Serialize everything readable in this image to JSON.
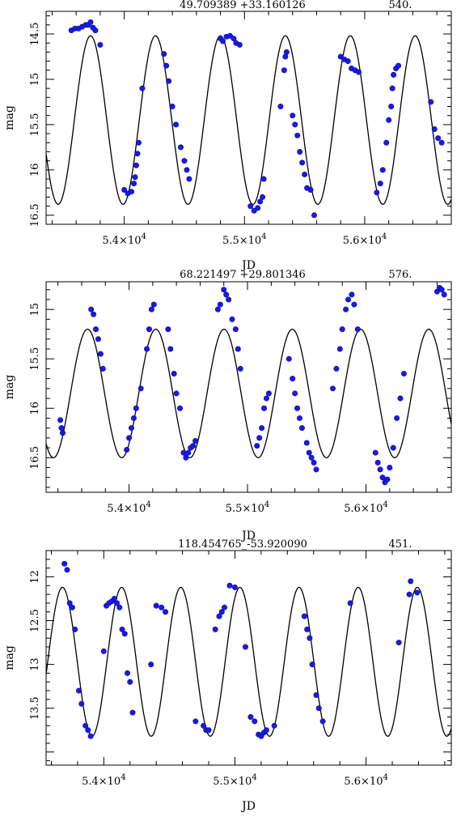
{
  "chart_data": [
    {
      "type": "scatter",
      "title": "49.709389 +33.160126",
      "period_label": "540.",
      "xlabel": "JD",
      "ylabel": "mag",
      "xlim": [
        53350,
        56720
      ],
      "ylim": [
        16.6,
        14.25
      ],
      "y_inverted": true,
      "grid": false,
      "x_ticks": [
        {
          "value": 54000,
          "mant": "5.4",
          "exp": "4"
        },
        {
          "value": 55000,
          "mant": "5.5",
          "exp": "4"
        },
        {
          "value": 56000,
          "mant": "5.6",
          "exp": "4"
        }
      ],
      "y_ticks": [
        {
          "value": 14.5,
          "label": "14.5"
        },
        {
          "value": 15,
          "label": "15"
        },
        {
          "value": 15.5,
          "label": "15.5"
        },
        {
          "value": 16,
          "label": "16"
        },
        {
          "value": 16.5,
          "label": "16.5"
        }
      ],
      "model": {
        "mean": 15.45,
        "amplitude": 0.93,
        "period": 540,
        "peak_jd": 53720
      },
      "points": [
        [
          53560,
          14.46
        ],
        [
          53590,
          14.44
        ],
        [
          53620,
          14.44
        ],
        [
          53650,
          14.42
        ],
        [
          53680,
          14.4
        ],
        [
          53700,
          14.4
        ],
        [
          53720,
          14.37
        ],
        [
          53740,
          14.43
        ],
        [
          53760,
          14.46
        ],
        [
          53800,
          14.62
        ],
        [
          54000,
          16.22
        ],
        [
          54030,
          16.26
        ],
        [
          54060,
          16.24
        ],
        [
          54080,
          16.15
        ],
        [
          54090,
          16.08
        ],
        [
          54100,
          15.95
        ],
        [
          54110,
          15.82
        ],
        [
          54120,
          15.7
        ],
        [
          54150,
          15.1
        ],
        [
          54330,
          14.72
        ],
        [
          54350,
          14.85
        ],
        [
          54370,
          15.02
        ],
        [
          54400,
          15.3
        ],
        [
          54430,
          15.5
        ],
        [
          54470,
          15.75
        ],
        [
          54500,
          15.9
        ],
        [
          54520,
          16.0
        ],
        [
          54540,
          16.1
        ],
        [
          54800,
          14.55
        ],
        [
          54820,
          14.58
        ],
        [
          54850,
          14.53
        ],
        [
          54880,
          14.52
        ],
        [
          54910,
          14.55
        ],
        [
          54930,
          14.6
        ],
        [
          54960,
          14.62
        ],
        [
          55050,
          16.4
        ],
        [
          55080,
          16.45
        ],
        [
          55110,
          16.42
        ],
        [
          55130,
          16.35
        ],
        [
          55150,
          16.3
        ],
        [
          55160,
          16.1
        ],
        [
          55300,
          15.3
        ],
        [
          55330,
          14.9
        ],
        [
          55340,
          14.75
        ],
        [
          55350,
          14.7
        ],
        [
          55400,
          15.4
        ],
        [
          55420,
          15.5
        ],
        [
          55440,
          15.62
        ],
        [
          55460,
          15.8
        ],
        [
          55480,
          15.92
        ],
        [
          55500,
          16.05
        ],
        [
          55520,
          16.2
        ],
        [
          55550,
          16.22
        ],
        [
          55580,
          16.5
        ],
        [
          55800,
          14.75
        ],
        [
          55830,
          14.78
        ],
        [
          55860,
          14.8
        ],
        [
          55890,
          14.88
        ],
        [
          55920,
          14.9
        ],
        [
          55950,
          14.92
        ],
        [
          56100,
          16.25
        ],
        [
          56130,
          16.15
        ],
        [
          56150,
          16.0
        ],
        [
          56180,
          15.7
        ],
        [
          56200,
          15.45
        ],
        [
          56220,
          15.3
        ],
        [
          56230,
          15.1
        ],
        [
          56240,
          14.95
        ],
        [
          56260,
          14.88
        ],
        [
          56280,
          14.85
        ],
        [
          56550,
          15.25
        ],
        [
          56580,
          15.55
        ],
        [
          56610,
          15.65
        ],
        [
          56640,
          15.7
        ]
      ]
    },
    {
      "type": "scatter",
      "title": "68.221497 +29.801346",
      "period_label": "576.",
      "xlabel": "JD",
      "ylabel": "mag",
      "xlim": [
        53300,
        56720
      ],
      "ylim": [
        16.85,
        14.72
      ],
      "y_inverted": true,
      "grid": false,
      "x_ticks": [
        {
          "value": 54000,
          "mant": "5.4",
          "exp": "4"
        },
        {
          "value": 55000,
          "mant": "5.5",
          "exp": "4"
        },
        {
          "value": 56000,
          "mant": "5.6",
          "exp": "4"
        }
      ],
      "y_ticks": [
        {
          "value": 15,
          "label": "15"
        },
        {
          "value": 15.5,
          "label": "15.5"
        },
        {
          "value": 16,
          "label": "16"
        },
        {
          "value": 16.5,
          "label": "16.5"
        }
      ],
      "model": {
        "mean": 15.85,
        "amplitude": 0.65,
        "period": 576,
        "peak_jd": 53650
      },
      "points": [
        [
          53420,
          16.12
        ],
        [
          53430,
          16.2
        ],
        [
          53440,
          16.25
        ],
        [
          53680,
          15.0
        ],
        [
          53700,
          15.05
        ],
        [
          53720,
          15.2
        ],
        [
          53740,
          15.3
        ],
        [
          53760,
          15.45
        ],
        [
          53780,
          15.6
        ],
        [
          53980,
          16.42
        ],
        [
          54000,
          16.3
        ],
        [
          54020,
          16.2
        ],
        [
          54040,
          16.1
        ],
        [
          54060,
          16.0
        ],
        [
          54100,
          15.8
        ],
        [
          54150,
          15.4
        ],
        [
          54170,
          15.2
        ],
        [
          54190,
          15.0
        ],
        [
          54210,
          14.95
        ],
        [
          54330,
          15.2
        ],
        [
          54350,
          15.4
        ],
        [
          54380,
          15.65
        ],
        [
          54400,
          15.85
        ],
        [
          54430,
          16.0
        ],
        [
          54460,
          16.45
        ],
        [
          54480,
          16.5
        ],
        [
          54500,
          16.45
        ],
        [
          54520,
          16.4
        ],
        [
          54540,
          16.38
        ],
        [
          54560,
          16.33
        ],
        [
          54750,
          15.0
        ],
        [
          54770,
          14.95
        ],
        [
          54800,
          14.8
        ],
        [
          54820,
          14.85
        ],
        [
          54840,
          14.9
        ],
        [
          54870,
          15.1
        ],
        [
          54900,
          15.2
        ],
        [
          54920,
          15.4
        ],
        [
          54940,
          15.6
        ],
        [
          55080,
          16.38
        ],
        [
          55100,
          16.3
        ],
        [
          55120,
          16.2
        ],
        [
          55140,
          16.0
        ],
        [
          55160,
          15.9
        ],
        [
          55180,
          15.85
        ],
        [
          55350,
          15.5
        ],
        [
          55380,
          15.7
        ],
        [
          55400,
          15.85
        ],
        [
          55420,
          16.0
        ],
        [
          55440,
          16.1
        ],
        [
          55460,
          16.2
        ],
        [
          55500,
          16.35
        ],
        [
          55520,
          16.45
        ],
        [
          55540,
          16.5
        ],
        [
          55560,
          16.55
        ],
        [
          55580,
          16.62
        ],
        [
          55720,
          15.8
        ],
        [
          55750,
          15.6
        ],
        [
          55780,
          15.4
        ],
        [
          55800,
          15.2
        ],
        [
          55830,
          15.0
        ],
        [
          55850,
          14.9
        ],
        [
          55880,
          14.85
        ],
        [
          55900,
          14.95
        ],
        [
          55930,
          15.2
        ],
        [
          56080,
          16.45
        ],
        [
          56100,
          16.55
        ],
        [
          56120,
          16.62
        ],
        [
          56140,
          16.7
        ],
        [
          56160,
          16.75
        ],
        [
          56180,
          16.72
        ],
        [
          56200,
          16.6
        ],
        [
          56230,
          16.4
        ],
        [
          56260,
          16.1
        ],
        [
          56290,
          15.9
        ],
        [
          56320,
          15.65
        ],
        [
          56600,
          14.82
        ],
        [
          56620,
          14.78
        ],
        [
          56640,
          14.8
        ],
        [
          56660,
          14.85
        ]
      ]
    },
    {
      "type": "scatter",
      "title": "118.454765_-53.920090",
      "period_label": "451.",
      "xlabel": "JD",
      "ylabel": "mag",
      "xlim": [
        53560,
        56650
      ],
      "ylim": [
        14.15,
        11.7
      ],
      "y_inverted": true,
      "grid": false,
      "x_ticks": [
        {
          "value": 54000,
          "mant": "5.4",
          "exp": "4"
        },
        {
          "value": 55000,
          "mant": "5.5",
          "exp": "4"
        },
        {
          "value": 56000,
          "mant": "5.6",
          "exp": "4"
        }
      ],
      "y_ticks": [
        {
          "value": 12,
          "label": "12"
        },
        {
          "value": 12.5,
          "label": "12.5"
        },
        {
          "value": 13,
          "label": "13"
        },
        {
          "value": 13.5,
          "label": "13.5"
        }
      ],
      "model": {
        "mean": 12.97,
        "amplitude": 0.85,
        "period": 451,
        "peak_jd": 53685
      },
      "points": [
        [
          53700,
          11.85
        ],
        [
          53720,
          11.92
        ],
        [
          53740,
          12.3
        ],
        [
          53760,
          12.35
        ],
        [
          53780,
          12.6
        ],
        [
          53810,
          13.3
        ],
        [
          53830,
          13.45
        ],
        [
          53860,
          13.7
        ],
        [
          53880,
          13.75
        ],
        [
          53900,
          13.82
        ],
        [
          54000,
          12.85
        ],
        [
          54020,
          12.33
        ],
        [
          54040,
          12.3
        ],
        [
          54060,
          12.28
        ],
        [
          54080,
          12.25
        ],
        [
          54100,
          12.3
        ],
        [
          54120,
          12.35
        ],
        [
          54140,
          12.6
        ],
        [
          54160,
          12.65
        ],
        [
          54180,
          13.1
        ],
        [
          54200,
          13.2
        ],
        [
          54220,
          13.55
        ],
        [
          54360,
          13.0
        ],
        [
          54400,
          12.33
        ],
        [
          54440,
          12.35
        ],
        [
          54470,
          12.4
        ],
        [
          54700,
          13.65
        ],
        [
          54760,
          13.7
        ],
        [
          54780,
          13.75
        ],
        [
          54800,
          13.75
        ],
        [
          54850,
          12.6
        ],
        [
          54880,
          12.45
        ],
        [
          54900,
          12.4
        ],
        [
          54920,
          12.35
        ],
        [
          54960,
          12.1
        ],
        [
          55000,
          12.12
        ],
        [
          55080,
          12.8
        ],
        [
          55120,
          13.6
        ],
        [
          55150,
          13.65
        ],
        [
          55180,
          13.8
        ],
        [
          55200,
          13.82
        ],
        [
          55220,
          13.78
        ],
        [
          55240,
          13.75
        ],
        [
          55300,
          13.7
        ],
        [
          55530,
          12.45
        ],
        [
          55550,
          12.6
        ],
        [
          55570,
          12.7
        ],
        [
          55590,
          13.0
        ],
        [
          55620,
          13.35
        ],
        [
          55640,
          13.5
        ],
        [
          55670,
          13.65
        ],
        [
          55880,
          12.3
        ],
        [
          56250,
          12.75
        ],
        [
          56330,
          12.2
        ],
        [
          56340,
          12.05
        ],
        [
          56390,
          12.18
        ]
      ]
    }
  ]
}
